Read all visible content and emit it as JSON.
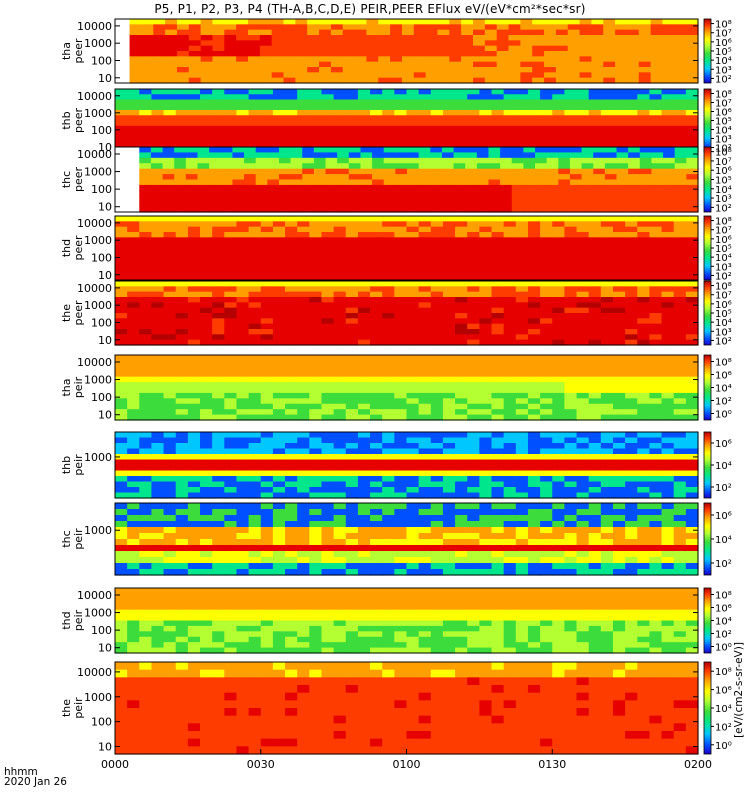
{
  "title": "P5, P1, P2, P3, P4 (TH-A,B,C,D,E) PEIR,PEER EFlux eV/(eV*cm²*sec*sr)",
  "footer": {
    "label_line1": "hhmm",
    "label_line2": "2020 Jan 26"
  },
  "colorbar_unit": "[eV/(cm2-s-sr-eV)]",
  "colors": {
    "colormap": [
      "#1a00c8",
      "#0050ff",
      "#00c8ff",
      "#00e68c",
      "#3cdc3c",
      "#b4ff32",
      "#ffff00",
      "#ffa000",
      "#ff3c00",
      "#e60000",
      "#b40000"
    ]
  },
  "chart_data": {
    "type": "heatmap",
    "x_axis": {
      "label": "hhmm",
      "date": "2020 Jan 26",
      "ticks": [
        "0000",
        "0030",
        "0100",
        "0130",
        "0200"
      ],
      "range": [
        "00:00",
        "02:00"
      ]
    },
    "panels": [
      {
        "id": "tha-peer",
        "ylabel": [
          "tha",
          "peer"
        ],
        "yticks": [
          "10000",
          "1000",
          "100",
          "10"
        ],
        "y_range": [
          5,
          25000
        ],
        "y_scale": "log",
        "cbar_ticks": [
          "10⁸",
          "10⁷",
          "10⁶",
          "10⁵",
          "10⁴",
          "10³",
          "10²"
        ],
        "data_start_min": 3
      },
      {
        "id": "thb-peer",
        "ylabel": [
          "thb",
          "peer"
        ],
        "yticks": [
          "10000",
          "1000",
          "100",
          "10"
        ],
        "y_range": [
          5,
          25000
        ],
        "y_scale": "log",
        "cbar_ticks": [
          "10⁸",
          "10⁷",
          "10⁶",
          "10⁵",
          "10⁴",
          "10³",
          "10²"
        ],
        "data_start_min": 0
      },
      {
        "id": "thc-peer",
        "ylabel": [
          "thc",
          "peer"
        ],
        "yticks": [
          "10000",
          "1000",
          "100",
          "10"
        ],
        "y_range": [
          5,
          25000
        ],
        "y_scale": "log",
        "cbar_ticks": [
          "10⁸",
          "10⁷",
          "10⁶",
          "10⁵",
          "10⁴",
          "10³",
          "10²"
        ],
        "data_start_min": 5
      },
      {
        "id": "thd-peer",
        "ylabel": [
          "thd",
          "peer"
        ],
        "yticks": [
          "10000",
          "1000",
          "100",
          "10"
        ],
        "y_range": [
          5,
          25000
        ],
        "y_scale": "log",
        "cbar_ticks": [
          "10⁸",
          "10⁷",
          "10⁶",
          "10⁵",
          "10⁴",
          "10³",
          "10²"
        ],
        "data_start_min": 0
      },
      {
        "id": "the-peer",
        "ylabel": [
          "the",
          "peer"
        ],
        "yticks": [
          "10000",
          "1000",
          "100",
          "10"
        ],
        "y_range": [
          5,
          25000
        ],
        "y_scale": "log",
        "cbar_ticks": [
          "10⁸",
          "10⁷",
          "10⁶",
          "10⁵",
          "10⁴",
          "10³",
          "10²"
        ],
        "data_start_min": 0
      },
      {
        "id": "tha-peir",
        "ylabel": [
          "tha",
          "peir"
        ],
        "yticks": [
          "10000",
          "1000",
          "100",
          "10"
        ],
        "y_range": [
          5,
          25000
        ],
        "y_scale": "log",
        "cbar_ticks": [
          "10⁸",
          "10⁶",
          "10⁴",
          "10²",
          "10⁰"
        ],
        "data_start_min": 0
      },
      {
        "id": "thb-peir",
        "ylabel": [
          "thb",
          "peir"
        ],
        "yticks": [
          "1000"
        ],
        "y_range": [
          5,
          25000
        ],
        "y_scale": "log",
        "cbar_ticks": [
          "10⁶",
          "10⁴",
          "10²"
        ],
        "data_start_min": 0
      },
      {
        "id": "thc-peir",
        "ylabel": [
          "thc",
          "peir"
        ],
        "yticks": [
          "1000"
        ],
        "y_range": [
          5,
          25000
        ],
        "y_scale": "log",
        "cbar_ticks": [
          "10⁶",
          "10⁴",
          "10²"
        ],
        "data_start_min": 0
      },
      {
        "id": "thd-peir",
        "ylabel": [
          "thd",
          "peir"
        ],
        "yticks": [
          "10000",
          "1000",
          "100",
          "10"
        ],
        "y_range": [
          5,
          25000
        ],
        "y_scale": "log",
        "cbar_ticks": [
          "10⁸",
          "10⁶",
          "10⁴",
          "10²",
          "10⁰"
        ],
        "data_start_min": 0
      },
      {
        "id": "the-peir",
        "ylabel": [
          "the",
          "peir"
        ],
        "yticks": [
          "10000",
          "1000",
          "100",
          "10"
        ],
        "y_range": [
          5,
          25000
        ],
        "y_scale": "log",
        "cbar_ticks": [
          "10⁸",
          "10⁶",
          "10⁴",
          "10²",
          "10⁰"
        ],
        "data_start_min": 0
      }
    ]
  }
}
